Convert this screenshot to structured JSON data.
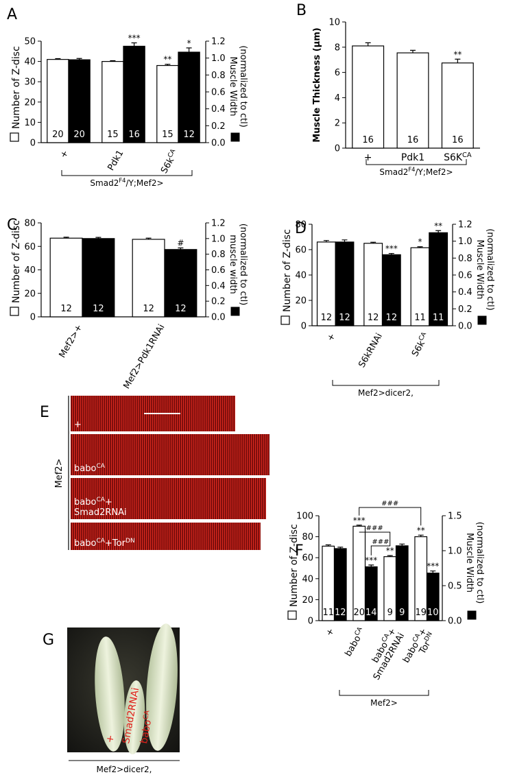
{
  "chart_data": [
    {
      "type": "bar",
      "panel": "A",
      "ylabel": "Number of Z-disc",
      "y2label": [
        "Muscle Width",
        "(normalized to ctl)"
      ],
      "categories": [
        "+",
        "Pdk1",
        [
          "S6k",
          {
            "sup": "CA"
          }
        ]
      ],
      "group_label": [
        "Smad2",
        {
          "sup": "F4"
        },
        "/Y;Mef2>"
      ],
      "ylim": [
        0,
        50
      ],
      "yticks": [
        0,
        10,
        20,
        30,
        40,
        50
      ],
      "y2lim": [
        0,
        1.2
      ],
      "y2ticks": [
        {
          "value": 0,
          "label": "0.0"
        },
        {
          "value": 0.2,
          "label": "0.2"
        },
        {
          "value": 0.4,
          "label": "0.4"
        },
        {
          "value": 0.6,
          "label": "0.6"
        },
        {
          "value": 0.8,
          "label": "0.8"
        },
        {
          "value": 1,
          "label": "1.0"
        },
        {
          "value": 1.2,
          "label": "1.2"
        }
      ],
      "series": [
        {
          "color": "#ffffff",
          "values": [
            41,
            40,
            38
          ],
          "errors": [
            0.4,
            0.4,
            0.6
          ],
          "n": [
            20,
            15,
            15
          ],
          "sig": [
            null,
            null,
            "**"
          ]
        },
        {
          "color": "#000000",
          "axis": "y2",
          "values": [
            0.98,
            1.14,
            1.07
          ],
          "errors": [
            0.015,
            0.04,
            0.05
          ],
          "n": [
            20,
            16,
            12
          ],
          "sig": [
            null,
            "***",
            "*"
          ]
        }
      ]
    },
    {
      "type": "bar",
      "panel": "B",
      "ylabel": "Muscle Thickness (µm)",
      "categories": [
        "+",
        "Pdk1",
        [
          "S6K",
          {
            "sup": "CA"
          }
        ]
      ],
      "group_label": [
        "Smad2",
        {
          "sup": "F4"
        },
        "/Y;Mef2>"
      ],
      "ylim": [
        0,
        10
      ],
      "yticks": [
        0,
        2,
        4,
        6,
        8,
        10
      ],
      "series": [
        {
          "color": "#ffffff",
          "values": [
            8.1,
            7.55,
            6.75
          ],
          "errors": [
            0.25,
            0.2,
            0.3
          ],
          "n": [
            16,
            16,
            16
          ],
          "sig": [
            null,
            null,
            "**"
          ]
        }
      ]
    },
    {
      "type": "bar",
      "panel": "C",
      "ylabel": "Number of Z-disc",
      "y2label": [
        "muscle width",
        "(normalized to ctl)"
      ],
      "categories": [
        "Mef2>+",
        "Mef2>Pdk1RNAi"
      ],
      "ylim": [
        0,
        80
      ],
      "yticks": [
        0,
        20,
        40,
        60,
        80
      ],
      "y2lim": [
        0,
        1.2
      ],
      "y2ticks": [
        {
          "value": 0,
          "label": "0.0"
        },
        {
          "value": 0.2,
          "label": "0.2"
        },
        {
          "value": 0.4,
          "label": "0.4"
        },
        {
          "value": 0.6,
          "label": "0.6"
        },
        {
          "value": 0.8,
          "label": "0.8"
        },
        {
          "value": 1,
          "label": "1.0"
        },
        {
          "value": 1.2,
          "label": "1.2"
        }
      ],
      "series": [
        {
          "color": "#ffffff",
          "values": [
            67,
            66
          ],
          "errors": [
            0.8,
            1
          ],
          "n": [
            12,
            12
          ],
          "sig": [
            null,
            null
          ]
        },
        {
          "color": "#000000",
          "axis": "y2",
          "values": [
            1.0,
            0.86
          ],
          "errors": [
            0.015,
            0.02
          ],
          "n": [
            12,
            12
          ],
          "sig": [
            null,
            "#"
          ]
        }
      ]
    },
    {
      "type": "bar",
      "panel": "D",
      "ylabel": "Number of Z-disc",
      "y2label": [
        "Muscle Width",
        "(normalized to ctl)"
      ],
      "categories": [
        "+",
        "S6kRNAi",
        [
          "S6k",
          {
            "sup": "CA"
          }
        ]
      ],
      "group_label": "Mef2>dicer2,",
      "ylim": [
        0,
        80
      ],
      "yticks": [
        0,
        20,
        40,
        60,
        80
      ],
      "y2lim": [
        0,
        1.2
      ],
      "y2ticks": [
        {
          "value": 0,
          "label": "0.0"
        },
        {
          "value": 0.2,
          "label": "0.2"
        },
        {
          "value": 0.4,
          "label": "0.4"
        },
        {
          "value": 0.6,
          "label": "0.6"
        },
        {
          "value": 0.8,
          "label": "0.8"
        },
        {
          "value": 1,
          "label": "1.0"
        },
        {
          "value": 1.2,
          "label": "1.2"
        }
      ],
      "series": [
        {
          "color": "#ffffff",
          "values": [
            66,
            65,
            61.5
          ],
          "errors": [
            1.2,
            0.8,
            0.8
          ],
          "n": [
            12,
            12,
            11
          ],
          "sig": [
            null,
            null,
            "*"
          ]
        },
        {
          "color": "#000000",
          "axis": "y2",
          "values": [
            0.99,
            0.84,
            1.1
          ],
          "errors": [
            0.025,
            0.015,
            0.025
          ],
          "n": [
            12,
            12,
            11
          ],
          "sig": [
            null,
            "***",
            "**"
          ]
        }
      ]
    },
    {
      "type": "bar",
      "panel": "F",
      "ylabel": "Number of Z-disc",
      "y2label": [
        "Muscle Width",
        "(normalized to ctl)"
      ],
      "categories": [
        "+",
        [
          "babo",
          {
            "sup": "CA"
          }
        ],
        [
          [
            "babo",
            {
              "sup": "CA"
            },
            "+"
          ],
          [
            "Smad2RNAi"
          ]
        ],
        [
          [
            "babo",
            {
              "sup": "CA"
            },
            "+"
          ],
          [
            "Tor",
            {
              "sup": "DN"
            }
          ]
        ]
      ],
      "group_label": "Mef2>",
      "ylim": [
        0,
        100
      ],
      "yticks": [
        0,
        20,
        40,
        60,
        80,
        100
      ],
      "y2lim": [
        0,
        1.5
      ],
      "y2ticks": [
        {
          "value": 0,
          "label": "0.0"
        },
        {
          "value": 0.5,
          "label": "0.5"
        },
        {
          "value": 1,
          "label": "1.0"
        },
        {
          "value": 1.5,
          "label": "1.5"
        }
      ],
      "series": [
        {
          "color": "#ffffff",
          "values": [
            71,
            90,
            61,
            80
          ],
          "errors": [
            1.2,
            1,
            1,
            1.5
          ],
          "n": [
            11,
            20,
            9,
            19
          ],
          "sig": [
            null,
            "***",
            "**",
            "**"
          ]
        },
        {
          "color": "#000000",
          "axis": "y2",
          "values": [
            1.03,
            0.77,
            1.07,
            0.68
          ],
          "errors": [
            0.02,
            0.025,
            0.025,
            0.03
          ],
          "n": [
            12,
            14,
            9,
            10
          ],
          "sig": [
            null,
            "***",
            null,
            "***"
          ]
        }
      ],
      "brackets": [
        {
          "label": "###",
          "from": [
            0,
            1
          ],
          "to": [
            0,
            3
          ]
        },
        {
          "label": "###",
          "from": [
            0,
            1
          ],
          "to": [
            0,
            2
          ]
        },
        {
          "label": "###",
          "from": [
            1,
            1
          ],
          "to": [
            0,
            2
          ]
        }
      ]
    }
  ],
  "image_panels": [
    {
      "panel": "E",
      "side_label": "Mef2>",
      "images": [
        "+",
        [
          "babo",
          {
            "sup": "CA"
          }
        ],
        [
          [
            "babo",
            {
              "sup": "CA"
            },
            "+"
          ],
          [
            "Smad2RNAi"
          ]
        ],
        [
          "babo",
          {
            "sup": "CA"
          },
          "+Tor",
          {
            "sup": "DN"
          }
        ]
      ]
    },
    {
      "panel": "G",
      "labels": [
        "+",
        "Smad2RNAi",
        [
          "babo",
          {
            "sup": "CA"
          }
        ]
      ],
      "caption": "Mef2>dicer2,"
    }
  ]
}
